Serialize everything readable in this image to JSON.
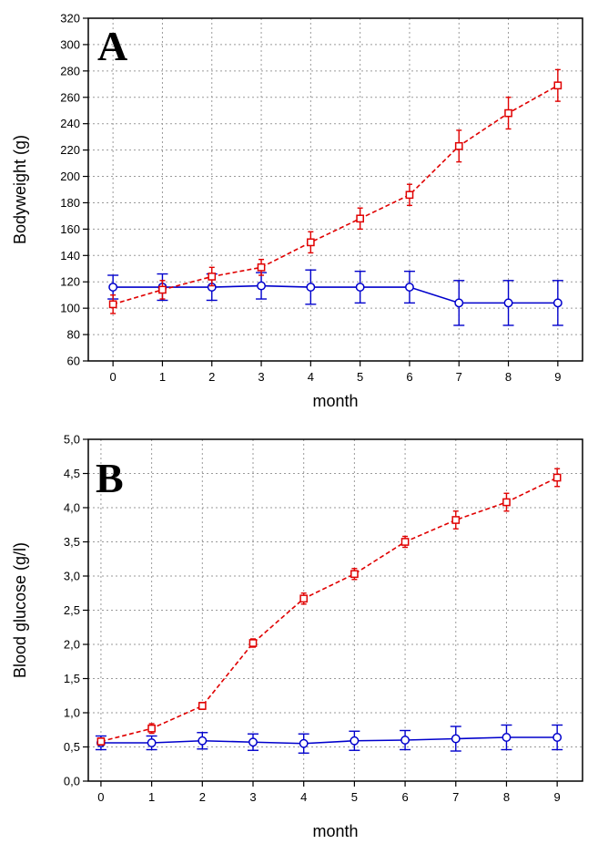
{
  "chart_data": [
    {
      "type": "line",
      "panel_label": "A",
      "xlabel": "month",
      "ylabel": "Bodyweight (g)",
      "x": [
        0,
        1,
        2,
        3,
        4,
        5,
        6,
        7,
        8,
        9
      ],
      "xlim": [
        -0.5,
        9.5
      ],
      "ylim": [
        60,
        320
      ],
      "xticks": [
        "0",
        "1",
        "2",
        "3",
        "4",
        "5",
        "6",
        "7",
        "8",
        "9"
      ],
      "yticks": [
        "60",
        "80",
        "100",
        "120",
        "140",
        "160",
        "180",
        "200",
        "220",
        "240",
        "260",
        "280",
        "300",
        "320"
      ],
      "grid": true,
      "series": [
        {
          "color": "#0000cc",
          "line_style": "solid",
          "marker": "circle",
          "values": [
            116,
            116,
            116,
            117,
            116,
            116,
            116,
            104,
            104,
            104
          ],
          "errors": [
            9,
            10,
            10,
            10,
            13,
            12,
            12,
            17,
            17,
            17
          ]
        },
        {
          "color": "#e00000",
          "line_style": "dashed",
          "marker": "square",
          "values": [
            103,
            114,
            124,
            131,
            150,
            168,
            186,
            223,
            248,
            269
          ],
          "errors": [
            7,
            7,
            7,
            6,
            8,
            8,
            8,
            12,
            12,
            12
          ]
        }
      ]
    },
    {
      "type": "line",
      "panel_label": "B",
      "xlabel": "month",
      "ylabel": "Blood  glucose   (g/l)",
      "x": [
        0,
        1,
        2,
        3,
        4,
        5,
        6,
        7,
        8,
        9
      ],
      "xlim": [
        -0.25,
        9.5
      ],
      "ylim": [
        0,
        5
      ],
      "xticks": [
        "0",
        "1",
        "2",
        "3",
        "4",
        "5",
        "6",
        "7",
        "8",
        "9"
      ],
      "yticks": [
        "0,0",
        "0,5",
        "1,0",
        "1,5",
        "2,0",
        "2,5",
        "3,0",
        "3,5",
        "4,0",
        "4,5",
        "5,0"
      ],
      "grid": true,
      "series": [
        {
          "color": "#0000cc",
          "line_style": "solid",
          "marker": "circle",
          "values": [
            0.56,
            0.56,
            0.59,
            0.57,
            0.55,
            0.59,
            0.6,
            0.62,
            0.64,
            0.64
          ],
          "errors": [
            0.1,
            0.1,
            0.12,
            0.12,
            0.14,
            0.14,
            0.14,
            0.18,
            0.18,
            0.18
          ]
        },
        {
          "color": "#e00000",
          "line_style": "dashed",
          "marker": "square",
          "values": [
            0.58,
            0.77,
            1.1,
            2.02,
            2.67,
            3.03,
            3.5,
            3.82,
            4.08,
            4.44
          ],
          "errors": [
            0.05,
            0.07,
            0.05,
            0.06,
            0.08,
            0.08,
            0.08,
            0.13,
            0.13,
            0.13
          ]
        }
      ]
    }
  ]
}
